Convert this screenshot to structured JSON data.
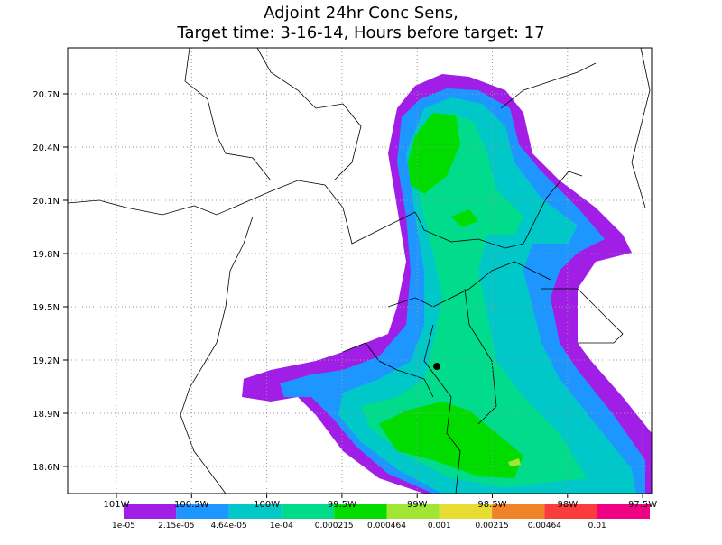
{
  "header": {
    "title_line1": "Adjoint 24hr Conc Sens,",
    "title_line2": "Target time: 3-16-14, Hours before target: 17"
  },
  "map": {
    "lat_ticks": [
      "20.7N",
      "20.4N",
      "20.1N",
      "19.8N",
      "19.5N",
      "19.2N",
      "18.9N",
      "18.6N"
    ],
    "lon_ticks": [
      "101W",
      "100.5W",
      "100W",
      "99.5W",
      "99W",
      "98.5W",
      "98W",
      "97.5W"
    ]
  },
  "legend": {
    "entries": [
      {
        "label": "1e-05",
        "color": "#a01ee6"
      },
      {
        "label": "2.15e-05",
        "color": "#1e96ff"
      },
      {
        "label": "4.64e-05",
        "color": "#00c8c8"
      },
      {
        "label": "1e-04",
        "color": "#00dc8c"
      },
      {
        "label": "0.000215",
        "color": "#00dc00"
      },
      {
        "label": "0.000464",
        "color": "#a0e632"
      },
      {
        "label": "0.001",
        "color": "#e6dc32"
      },
      {
        "label": "0.00215",
        "color": "#f08228"
      },
      {
        "label": "0.00464",
        "color": "#fa3c3c"
      },
      {
        "label": "0.01",
        "color": "#f00082"
      }
    ]
  }
}
